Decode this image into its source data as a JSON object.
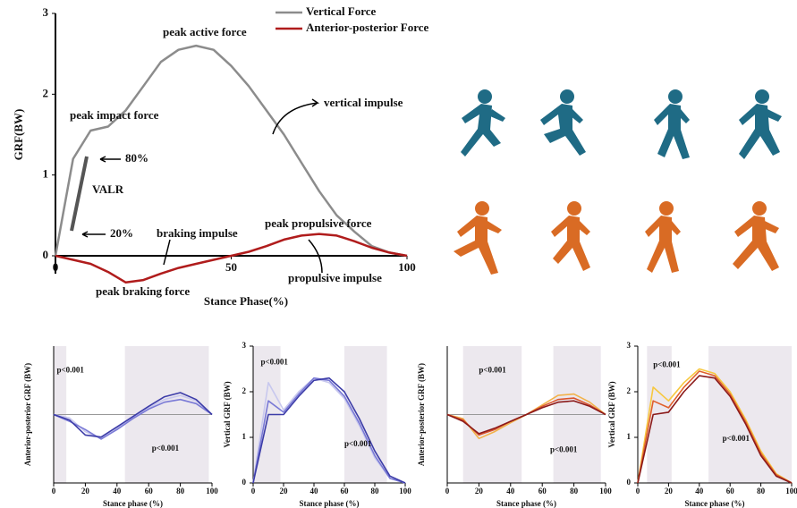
{
  "chart_data": [
    {
      "type": "line",
      "xlabel": "Stance Phase(%)",
      "ylabel": "GRF(BW)",
      "x": [
        0,
        5,
        10,
        15,
        20,
        25,
        30,
        35,
        40,
        45,
        50,
        55,
        60,
        65,
        70,
        75,
        80,
        85,
        90,
        95,
        100
      ],
      "xlim": [
        0,
        100
      ],
      "ylim": [
        0,
        3
      ],
      "xticks": [
        0,
        50,
        100
      ],
      "yticks": [
        0,
        1,
        2,
        3
      ],
      "series": [
        {
          "name": "Vertical Force",
          "color": "#8c8c8c",
          "values": [
            0,
            1.2,
            1.55,
            1.6,
            1.8,
            2.1,
            2.4,
            2.55,
            2.6,
            2.55,
            2.35,
            2.1,
            1.8,
            1.5,
            1.15,
            0.8,
            0.5,
            0.3,
            0.12,
            0.04,
            0
          ]
        },
        {
          "name": "Anterior-posterior Force",
          "color": "#b01c1c",
          "values": [
            0,
            -0.05,
            -0.1,
            -0.2,
            -0.33,
            -0.3,
            -0.22,
            -0.15,
            -0.1,
            -0.05,
            0,
            0.05,
            0.12,
            0.2,
            0.25,
            0.27,
            0.25,
            0.18,
            0.1,
            0.04,
            0
          ]
        }
      ],
      "annotations": [
        "peak active force",
        "peak impact force",
        "80%",
        "VALR",
        "20%",
        "braking impulse",
        "peak propulsive force",
        "vertical impulse",
        "propulsive impulse",
        "peak braking force"
      ]
    },
    {
      "type": "line",
      "xlabel": "Stance phase (%)",
      "ylabel": "Anterior-posterior GRF (BW)",
      "x": [
        0,
        10,
        20,
        30,
        40,
        50,
        60,
        70,
        80,
        90,
        100
      ],
      "xlim": [
        0,
        100
      ],
      "ylim": [
        -1,
        1
      ],
      "xticks": [
        0,
        20,
        40,
        60,
        80,
        100
      ],
      "shaded": [
        [
          0,
          8
        ],
        [
          45,
          98
        ]
      ],
      "series": [
        {
          "color": "#c8c8ee",
          "values": [
            0,
            -0.05,
            -0.25,
            -0.35,
            -0.2,
            -0.05,
            0.1,
            0.22,
            0.28,
            0.2,
            0
          ]
        },
        {
          "color": "#7a7ad6",
          "values": [
            0,
            -0.1,
            -0.22,
            -0.36,
            -0.22,
            -0.06,
            0.08,
            0.18,
            0.22,
            0.16,
            0
          ]
        },
        {
          "color": "#3c3ca8",
          "values": [
            0,
            -0.08,
            -0.3,
            -0.33,
            -0.18,
            -0.03,
            0.12,
            0.26,
            0.32,
            0.22,
            0
          ]
        }
      ],
      "annotations": [
        "p<0.001",
        "p<0.001"
      ]
    },
    {
      "type": "line",
      "xlabel": "Stance phase (%)",
      "ylabel": "Vertical GRF (BW)",
      "x": [
        0,
        10,
        20,
        30,
        40,
        50,
        60,
        70,
        80,
        90,
        100
      ],
      "xlim": [
        0,
        100
      ],
      "ylim": [
        0,
        3
      ],
      "xticks": [
        0,
        20,
        40,
        60,
        80,
        100
      ],
      "yticks": [
        0,
        1,
        2,
        3
      ],
      "shaded": [
        [
          0,
          18
        ],
        [
          60,
          88
        ]
      ],
      "series": [
        {
          "color": "#c8c8ee",
          "values": [
            0,
            2.2,
            1.6,
            2.0,
            2.3,
            2.2,
            1.85,
            1.25,
            0.55,
            0.1,
            0
          ]
        },
        {
          "color": "#7a7ad6",
          "values": [
            0,
            1.8,
            1.55,
            1.95,
            2.3,
            2.25,
            1.9,
            1.3,
            0.6,
            0.1,
            0
          ]
        },
        {
          "color": "#3c3ca8",
          "values": [
            0,
            1.5,
            1.5,
            1.9,
            2.25,
            2.3,
            2.0,
            1.4,
            0.7,
            0.15,
            0
          ]
        }
      ],
      "annotations": [
        "p<0.001",
        "p<0.001"
      ]
    },
    {
      "type": "line",
      "xlabel": "Stance phase (%)",
      "ylabel": "Anterior-posterior GRF (BW)",
      "x": [
        0,
        10,
        20,
        30,
        40,
        50,
        60,
        70,
        80,
        90,
        100
      ],
      "xlim": [
        0,
        100
      ],
      "ylim": [
        -1,
        1
      ],
      "xticks": [
        0,
        20,
        40,
        60,
        80,
        100
      ],
      "shaded": [
        [
          10,
          47
        ],
        [
          67,
          97
        ]
      ],
      "series": [
        {
          "color": "#f2b24a",
          "values": [
            0,
            -0.06,
            -0.35,
            -0.25,
            -0.12,
            0,
            0.14,
            0.28,
            0.3,
            0.18,
            0
          ]
        },
        {
          "color": "#d9542c",
          "values": [
            0,
            -0.08,
            -0.3,
            -0.22,
            -0.1,
            0,
            0.12,
            0.22,
            0.24,
            0.14,
            0
          ]
        },
        {
          "color": "#8b1a1a",
          "values": [
            0,
            -0.1,
            -0.28,
            -0.2,
            -0.1,
            0,
            0.1,
            0.18,
            0.2,
            0.12,
            0
          ]
        }
      ],
      "annotations": [
        "p<0.001",
        "p<0.001"
      ]
    },
    {
      "type": "line",
      "xlabel": "Stance phase (%)",
      "ylabel": "Vertical GRF (BW)",
      "x": [
        0,
        10,
        20,
        30,
        40,
        50,
        60,
        70,
        80,
        90,
        100
      ],
      "xlim": [
        0,
        100
      ],
      "ylim": [
        0,
        3
      ],
      "xticks": [
        0,
        20,
        40,
        60,
        80,
        100
      ],
      "yticks": [
        0,
        1,
        2,
        3
      ],
      "shaded": [
        [
          6,
          22
        ],
        [
          46,
          100
        ]
      ],
      "series": [
        {
          "color": "#f7c840",
          "values": [
            0,
            2.1,
            1.8,
            2.2,
            2.5,
            2.4,
            2.0,
            1.4,
            0.7,
            0.2,
            0
          ]
        },
        {
          "color": "#e0602c",
          "values": [
            0,
            1.8,
            1.65,
            2.1,
            2.45,
            2.35,
            1.95,
            1.35,
            0.65,
            0.18,
            0
          ]
        },
        {
          "color": "#8b1a1a",
          "values": [
            0,
            1.5,
            1.55,
            2.0,
            2.35,
            2.3,
            1.9,
            1.3,
            0.6,
            0.15,
            0
          ]
        }
      ],
      "annotations": [
        "p<0.001",
        "p<0.001"
      ]
    }
  ]
}
